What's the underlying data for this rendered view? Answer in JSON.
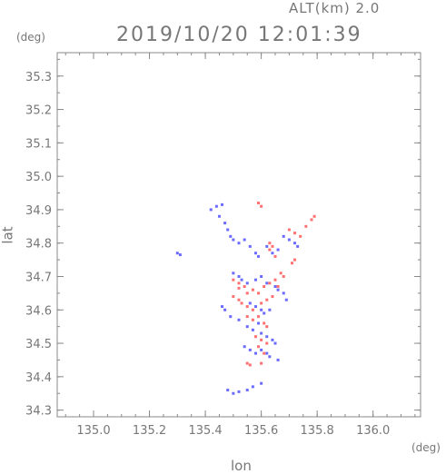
{
  "header": {
    "altitude_label": "ALT(km) 2.0",
    "timestamp": "2019/10/20 12:01:39",
    "y_unit": "(deg)",
    "x_unit": "(deg)"
  },
  "chart_data": {
    "type": "scatter",
    "title": "2019/10/20 12:01:39",
    "xlabel": "lon",
    "ylabel": "lat",
    "xlim": [
      134.87,
      136.17
    ],
    "ylim": [
      34.28,
      35.37
    ],
    "xticks": [
      "135.0",
      "135.2",
      "135.4",
      "135.6",
      "135.8",
      "136.0"
    ],
    "yticks": [
      "34.3",
      "34.4",
      "34.5",
      "34.6",
      "34.7",
      "34.8",
      "34.9",
      "35.0",
      "35.1",
      "35.2",
      "35.3"
    ],
    "grid": false,
    "colors": {
      "positive": "#ff4040",
      "negative": "#3a3aff",
      "axis": "#888888"
    },
    "series": [
      {
        "values": [
          [
            135.3,
            34.77
          ],
          [
            135.31,
            34.765
          ],
          [
            135.42,
            34.9
          ],
          [
            135.44,
            34.91
          ],
          [
            135.46,
            34.915
          ],
          [
            135.45,
            34.88
          ],
          [
            135.47,
            34.86
          ],
          [
            135.48,
            34.84
          ],
          [
            135.49,
            34.82
          ],
          [
            135.5,
            34.81
          ],
          [
            135.52,
            34.8
          ],
          [
            135.54,
            34.81
          ],
          [
            135.56,
            34.79
          ],
          [
            135.58,
            34.77
          ],
          [
            135.59,
            34.76
          ],
          [
            135.62,
            34.79
          ],
          [
            135.64,
            34.77
          ],
          [
            135.66,
            34.78
          ],
          [
            135.68,
            34.82
          ],
          [
            135.7,
            34.81
          ],
          [
            135.72,
            34.8
          ],
          [
            135.73,
            34.79
          ],
          [
            135.5,
            34.71
          ],
          [
            135.52,
            34.7
          ],
          [
            135.53,
            34.69
          ],
          [
            135.55,
            34.68
          ],
          [
            135.58,
            34.69
          ],
          [
            135.6,
            34.7
          ],
          [
            135.62,
            34.68
          ],
          [
            135.65,
            34.67
          ],
          [
            135.66,
            34.66
          ],
          [
            135.68,
            34.65
          ],
          [
            135.69,
            34.63
          ],
          [
            135.46,
            34.61
          ],
          [
            135.47,
            34.6
          ],
          [
            135.49,
            34.58
          ],
          [
            135.52,
            34.57
          ],
          [
            135.55,
            34.55
          ],
          [
            135.57,
            34.54
          ],
          [
            135.6,
            34.53
          ],
          [
            135.62,
            34.52
          ],
          [
            135.64,
            34.51
          ],
          [
            135.54,
            34.49
          ],
          [
            135.56,
            34.48
          ],
          [
            135.58,
            34.47
          ],
          [
            135.6,
            34.48
          ],
          [
            135.62,
            34.47
          ],
          [
            135.63,
            34.46
          ],
          [
            135.65,
            34.5
          ],
          [
            135.66,
            34.45
          ],
          [
            135.48,
            34.36
          ],
          [
            135.5,
            34.35
          ],
          [
            135.52,
            34.355
          ],
          [
            135.55,
            34.36
          ],
          [
            135.57,
            34.37
          ],
          [
            135.6,
            34.38
          ],
          [
            135.56,
            34.62
          ],
          [
            135.58,
            34.61
          ],
          [
            135.6,
            34.6
          ],
          [
            135.61,
            34.59
          ],
          [
            135.63,
            34.6
          ],
          [
            135.59,
            34.56
          ]
        ],
        "color": "#3a3aff"
      },
      {
        "values": [
          [
            135.59,
            34.92
          ],
          [
            135.6,
            34.91
          ],
          [
            135.63,
            34.8
          ],
          [
            135.64,
            34.79
          ],
          [
            135.63,
            34.78
          ],
          [
            135.65,
            34.76
          ],
          [
            135.7,
            34.84
          ],
          [
            135.72,
            34.83
          ],
          [
            135.74,
            34.82
          ],
          [
            135.76,
            34.85
          ],
          [
            135.78,
            34.87
          ],
          [
            135.79,
            34.88
          ],
          [
            135.72,
            34.75
          ],
          [
            135.71,
            34.74
          ],
          [
            135.5,
            34.69
          ],
          [
            135.52,
            34.68
          ],
          [
            135.54,
            34.67
          ],
          [
            135.55,
            34.65
          ],
          [
            135.57,
            34.66
          ],
          [
            135.59,
            34.65
          ],
          [
            135.61,
            34.67
          ],
          [
            135.63,
            34.68
          ],
          [
            135.65,
            34.69
          ],
          [
            135.66,
            34.67
          ],
          [
            135.5,
            34.64
          ],
          [
            135.52,
            34.63
          ],
          [
            135.53,
            34.62
          ],
          [
            135.55,
            34.61
          ],
          [
            135.57,
            34.6
          ],
          [
            135.6,
            34.62
          ],
          [
            135.62,
            34.63
          ],
          [
            135.64,
            34.64
          ],
          [
            135.55,
            34.58
          ],
          [
            135.57,
            34.57
          ],
          [
            135.59,
            34.58
          ],
          [
            135.61,
            34.56
          ],
          [
            135.62,
            34.55
          ],
          [
            135.58,
            34.52
          ],
          [
            135.6,
            34.51
          ],
          [
            135.62,
            34.5
          ],
          [
            135.59,
            34.49
          ],
          [
            135.61,
            34.47
          ],
          [
            135.55,
            34.44
          ],
          [
            135.56,
            34.435
          ],
          [
            135.6,
            34.44
          ],
          [
            135.52,
            34.665
          ],
          [
            135.67,
            34.71
          ],
          [
            135.68,
            34.7
          ]
        ],
        "color": "#ff4040"
      }
    ]
  }
}
